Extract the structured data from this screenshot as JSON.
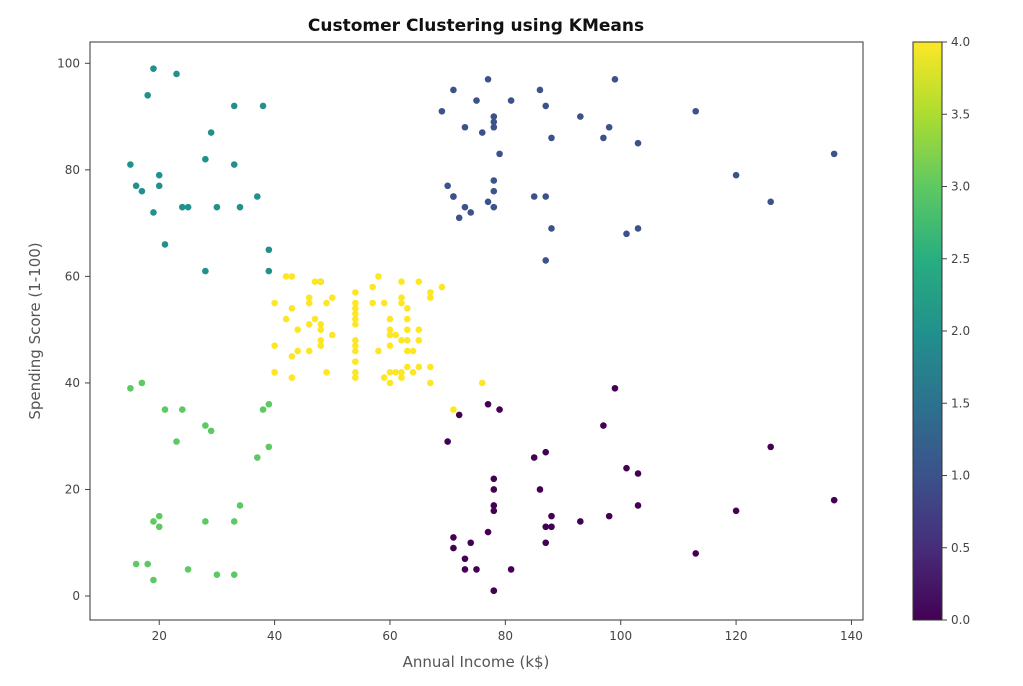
{
  "chart_data": {
    "type": "scatter",
    "title": "Customer Clustering using KMeans",
    "xlabel": "Annual Income (k$)",
    "ylabel": "Spending Score (1-100)",
    "xlim": [
      8,
      142
    ],
    "ylim": [
      -4.5,
      104
    ],
    "xticks": [
      20,
      40,
      60,
      80,
      100,
      120,
      140
    ],
    "yticks": [
      0,
      20,
      40,
      60,
      80,
      100
    ],
    "grid": false,
    "colormap": "viridis",
    "colorbar": {
      "range": [
        0.0,
        4.0
      ],
      "ticks": [
        0.0,
        0.5,
        1.0,
        1.5,
        2.0,
        2.5,
        3.0,
        3.5,
        4.0
      ],
      "tick_labels": [
        "0.0",
        "0.5",
        "1.0",
        "1.5",
        "2.0",
        "2.5",
        "3.0",
        "3.5",
        "4.0"
      ]
    },
    "cluster_colors": [
      "#440154",
      "#3b528b",
      "#21918c",
      "#5ec962",
      "#fde725"
    ],
    "points": [
      [
        15,
        39,
        3
      ],
      [
        15,
        81,
        2
      ],
      [
        16,
        6,
        3
      ],
      [
        16,
        77,
        2
      ],
      [
        17,
        40,
        3
      ],
      [
        17,
        76,
        2
      ],
      [
        18,
        6,
        3
      ],
      [
        18,
        94,
        2
      ],
      [
        19,
        3,
        3
      ],
      [
        19,
        72,
        2
      ],
      [
        19,
        14,
        3
      ],
      [
        19,
        99,
        2
      ],
      [
        20,
        15,
        3
      ],
      [
        20,
        77,
        2
      ],
      [
        20,
        13,
        3
      ],
      [
        20,
        79,
        2
      ],
      [
        21,
        35,
        3
      ],
      [
        21,
        66,
        2
      ],
      [
        23,
        29,
        3
      ],
      [
        23,
        98,
        2
      ],
      [
        24,
        35,
        3
      ],
      [
        24,
        73,
        2
      ],
      [
        25,
        5,
        3
      ],
      [
        25,
        73,
        2
      ],
      [
        28,
        14,
        3
      ],
      [
        28,
        82,
        2
      ],
      [
        28,
        32,
        3
      ],
      [
        28,
        61,
        2
      ],
      [
        29,
        31,
        3
      ],
      [
        29,
        87,
        2
      ],
      [
        30,
        4,
        3
      ],
      [
        30,
        73,
        2
      ],
      [
        33,
        4,
        3
      ],
      [
        33,
        92,
        2
      ],
      [
        33,
        14,
        3
      ],
      [
        33,
        81,
        2
      ],
      [
        34,
        17,
        3
      ],
      [
        34,
        73,
        2
      ],
      [
        37,
        26,
        3
      ],
      [
        37,
        75,
        2
      ],
      [
        38,
        35,
        3
      ],
      [
        38,
        92,
        2
      ],
      [
        39,
        36,
        3
      ],
      [
        39,
        61,
        2
      ],
      [
        39,
        28,
        3
      ],
      [
        39,
        65,
        2
      ],
      [
        40,
        55,
        4
      ],
      [
        40,
        47,
        4
      ],
      [
        40,
        42,
        4
      ],
      [
        40,
        42,
        4
      ],
      [
        42,
        52,
        4
      ],
      [
        42,
        60,
        4
      ],
      [
        43,
        54,
        4
      ],
      [
        43,
        60,
        4
      ],
      [
        43,
        45,
        4
      ],
      [
        43,
        41,
        4
      ],
      [
        44,
        50,
        4
      ],
      [
        44,
        46,
        4
      ],
      [
        46,
        51,
        4
      ],
      [
        46,
        46,
        4
      ],
      [
        46,
        56,
        4
      ],
      [
        46,
        55,
        4
      ],
      [
        47,
        52,
        4
      ],
      [
        47,
        59,
        4
      ],
      [
        48,
        51,
        4
      ],
      [
        48,
        59,
        2
      ],
      [
        48,
        50,
        4
      ],
      [
        48,
        48,
        4
      ],
      [
        48,
        59,
        4
      ],
      [
        48,
        47,
        4
      ],
      [
        49,
        55,
        4
      ],
      [
        49,
        42,
        4
      ],
      [
        50,
        49,
        4
      ],
      [
        50,
        56,
        4
      ],
      [
        54,
        47,
        4
      ],
      [
        54,
        54,
        4
      ],
      [
        54,
        53,
        4
      ],
      [
        54,
        48,
        4
      ],
      [
        54,
        52,
        4
      ],
      [
        54,
        42,
        4
      ],
      [
        54,
        51,
        4
      ],
      [
        54,
        55,
        4
      ],
      [
        54,
        41,
        4
      ],
      [
        54,
        44,
        4
      ],
      [
        54,
        57,
        4
      ],
      [
        54,
        46,
        4
      ],
      [
        57,
        58,
        4
      ],
      [
        57,
        55,
        4
      ],
      [
        58,
        60,
        4
      ],
      [
        58,
        46,
        4
      ],
      [
        59,
        55,
        4
      ],
      [
        59,
        41,
        4
      ],
      [
        60,
        49,
        4
      ],
      [
        60,
        40,
        4
      ],
      [
        60,
        42,
        4
      ],
      [
        60,
        52,
        4
      ],
      [
        60,
        47,
        4
      ],
      [
        60,
        50,
        4
      ],
      [
        61,
        42,
        4
      ],
      [
        61,
        49,
        4
      ],
      [
        62,
        41,
        4
      ],
      [
        62,
        48,
        4
      ],
      [
        62,
        59,
        4
      ],
      [
        62,
        55,
        4
      ],
      [
        62,
        56,
        4
      ],
      [
        62,
        42,
        4
      ],
      [
        63,
        50,
        4
      ],
      [
        63,
        46,
        4
      ],
      [
        63,
        43,
        4
      ],
      [
        63,
        48,
        4
      ],
      [
        63,
        52,
        4
      ],
      [
        63,
        54,
        4
      ],
      [
        64,
        42,
        4
      ],
      [
        64,
        46,
        4
      ],
      [
        65,
        48,
        4
      ],
      [
        65,
        50,
        4
      ],
      [
        65,
        43,
        4
      ],
      [
        65,
        59,
        4
      ],
      [
        67,
        43,
        4
      ],
      [
        67,
        57,
        4
      ],
      [
        67,
        56,
        4
      ],
      [
        67,
        40,
        4
      ],
      [
        69,
        58,
        4
      ],
      [
        69,
        91,
        1
      ],
      [
        70,
        29,
        0
      ],
      [
        70,
        77,
        1
      ],
      [
        71,
        35,
        4
      ],
      [
        71,
        95,
        1
      ],
      [
        71,
        11,
        0
      ],
      [
        71,
        75,
        1
      ],
      [
        71,
        9,
        0
      ],
      [
        71,
        75,
        1
      ],
      [
        72,
        34,
        0
      ],
      [
        72,
        71,
        1
      ],
      [
        73,
        5,
        0
      ],
      [
        73,
        88,
        1
      ],
      [
        73,
        7,
        0
      ],
      [
        73,
        73,
        1
      ],
      [
        74,
        10,
        0
      ],
      [
        74,
        72,
        1
      ],
      [
        75,
        5,
        0
      ],
      [
        75,
        93,
        1
      ],
      [
        76,
        40,
        4
      ],
      [
        76,
        87,
        1
      ],
      [
        77,
        12,
        0
      ],
      [
        77,
        97,
        1
      ],
      [
        77,
        36,
        0
      ],
      [
        77,
        74,
        1
      ],
      [
        78,
        22,
        0
      ],
      [
        78,
        90,
        1
      ],
      [
        78,
        17,
        0
      ],
      [
        78,
        88,
        1
      ],
      [
        78,
        20,
        0
      ],
      [
        78,
        76,
        1
      ],
      [
        78,
        16,
        0
      ],
      [
        78,
        89,
        1
      ],
      [
        78,
        1,
        0
      ],
      [
        78,
        78,
        1
      ],
      [
        78,
        1,
        0
      ],
      [
        78,
        73,
        1
      ],
      [
        79,
        35,
        0
      ],
      [
        79,
        83,
        1
      ],
      [
        81,
        5,
        0
      ],
      [
        81,
        93,
        1
      ],
      [
        85,
        26,
        0
      ],
      [
        85,
        75,
        1
      ],
      [
        86,
        20,
        0
      ],
      [
        86,
        95,
        1
      ],
      [
        87,
        27,
        0
      ],
      [
        87,
        63,
        1
      ],
      [
        87,
        13,
        0
      ],
      [
        87,
        75,
        1
      ],
      [
        87,
        10,
        0
      ],
      [
        87,
        92,
        1
      ],
      [
        88,
        13,
        0
      ],
      [
        88,
        86,
        1
      ],
      [
        88,
        15,
        0
      ],
      [
        88,
        69,
        1
      ],
      [
        93,
        14,
        0
      ],
      [
        93,
        90,
        1
      ],
      [
        97,
        32,
        0
      ],
      [
        97,
        86,
        1
      ],
      [
        98,
        15,
        0
      ],
      [
        98,
        88,
        1
      ],
      [
        99,
        39,
        0
      ],
      [
        99,
        97,
        1
      ],
      [
        101,
        24,
        0
      ],
      [
        101,
        68,
        1
      ],
      [
        103,
        17,
        0
      ],
      [
        103,
        85,
        1
      ],
      [
        103,
        23,
        0
      ],
      [
        103,
        69,
        1
      ],
      [
        113,
        8,
        0
      ],
      [
        113,
        91,
        1
      ],
      [
        120,
        16,
        0
      ],
      [
        120,
        79,
        1
      ],
      [
        126,
        28,
        0
      ],
      [
        126,
        74,
        1
      ],
      [
        137,
        18,
        0
      ],
      [
        137,
        83,
        1
      ]
    ]
  }
}
